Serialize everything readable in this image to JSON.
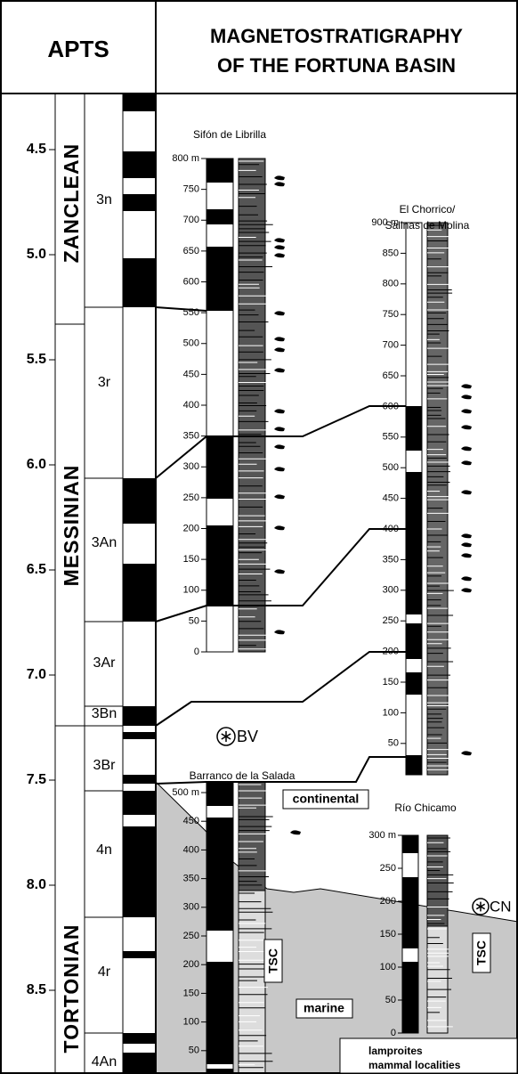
{
  "header": {
    "left_title": "APTS",
    "title_line1": "MAGNETOSTRATIGRAPHY",
    "title_line2": "OF THE FORTUNA BASIN"
  },
  "age_scale": {
    "ticks": [
      "4.5",
      "5.0",
      "5.5",
      "6.0",
      "6.5",
      "7.0",
      "7.5",
      "8.0",
      "8.5"
    ]
  },
  "epochs": [
    "ZANCLEAN",
    "MESSINIAN",
    "TORTONIAN"
  ],
  "chrons": [
    "3n",
    "3r",
    "3An",
    "3Ar",
    "3Bn",
    "3Br",
    "4n",
    "4r",
    "4An"
  ],
  "sections": [
    {
      "name": "Sifón de Librilla",
      "ticks": [
        "800 m",
        "750",
        "700",
        "650",
        "600",
        "550",
        "500",
        "450",
        "400",
        "350",
        "300",
        "250",
        "200",
        "150",
        "100",
        "50",
        "0"
      ]
    },
    {
      "name_lines": [
        "El Chorrico/",
        "Salinas de Molina"
      ],
      "ticks": [
        "900 m",
        "850",
        "800",
        "750",
        "700",
        "650",
        "600",
        "550",
        "500",
        "450",
        "400",
        "350",
        "300",
        "250",
        "200",
        "150",
        "100",
        "50"
      ]
    },
    {
      "name": "Barranco de la Salada",
      "ticks": [
        "500 m",
        "450",
        "400",
        "350",
        "300",
        "250",
        "200",
        "150",
        "100",
        "50"
      ]
    },
    {
      "name": "Río Chicamo",
      "ticks": [
        "300 m",
        "250",
        "200",
        "150",
        "100",
        "50",
        "0"
      ]
    }
  ],
  "annotations": {
    "bv": "BV",
    "cn": "CN",
    "continental": "continental",
    "marine": "marine",
    "tsc_barranco": "TSC",
    "tsc_chicamo": "TSC"
  },
  "legend": {
    "lamproites": "lamproites",
    "mammals": "mammal localities"
  }
}
